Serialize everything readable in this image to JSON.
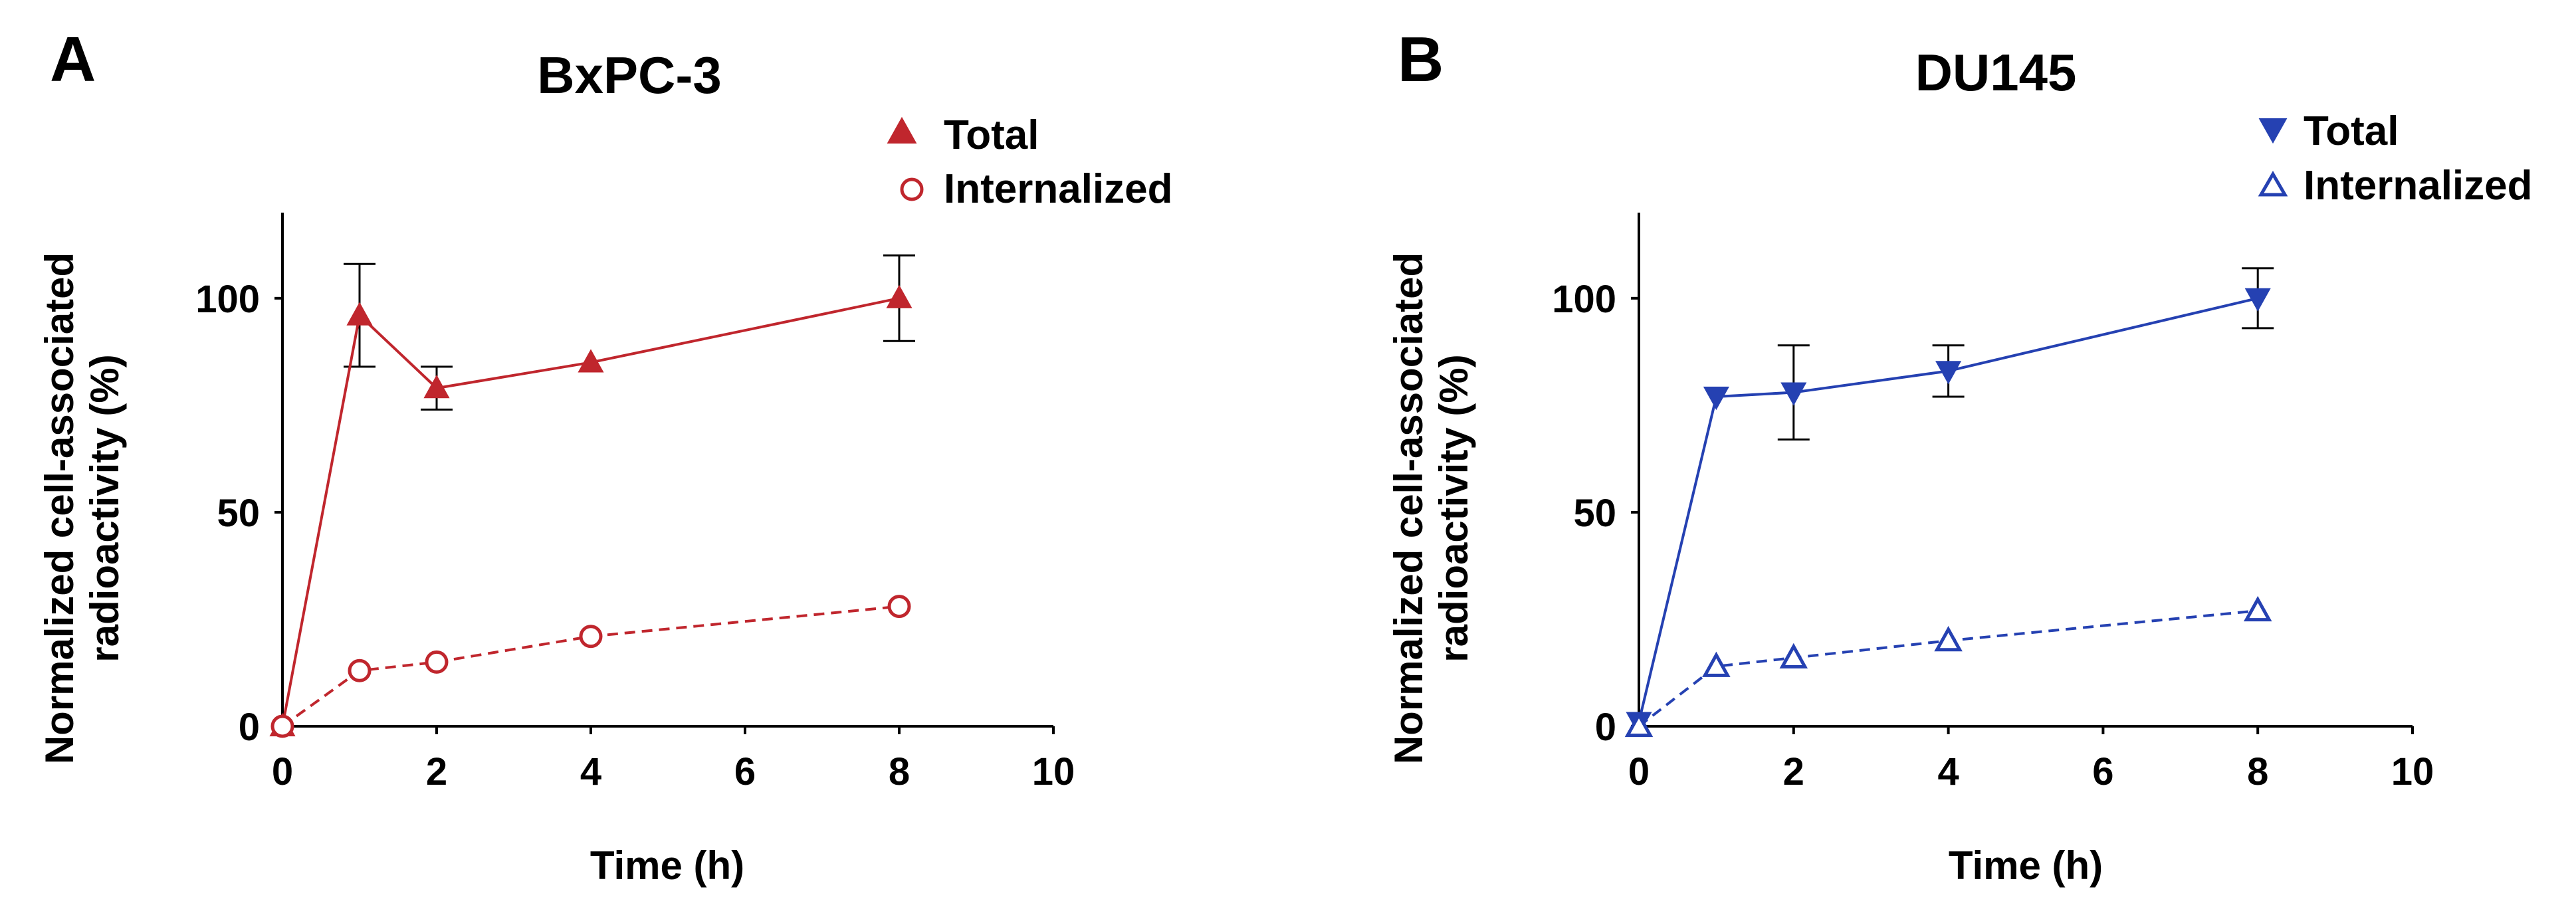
{
  "panels": [
    {
      "letter": "A",
      "title": "BxPC-3",
      "xlabel": "Time (h)",
      "ylabel_line1": "Normalized cell-associated",
      "ylabel_line2": "radioactivity (%)",
      "legend": {
        "total": "Total",
        "internalized": "Internalized"
      }
    },
    {
      "letter": "B",
      "title": "DU145",
      "xlabel": "Time (h)",
      "ylabel_line1": "Normalized cell-associated",
      "ylabel_line2": "radioactivity (%)",
      "legend": {
        "total": "Total",
        "internalized": "Internalized"
      }
    }
  ],
  "chart_data": [
    {
      "type": "line",
      "title": "BxPC-3",
      "xlabel": "Time (h)",
      "ylabel": "Normalized cell-associated radioactivity (%)",
      "xlim": [
        0,
        10
      ],
      "ylim": [
        0,
        120
      ],
      "xticks": [
        0,
        2,
        4,
        6,
        8,
        10
      ],
      "yticks": [
        0,
        50,
        100
      ],
      "xtick_labels": [
        "0",
        "2",
        "4",
        "6",
        "8",
        "10"
      ],
      "ytick_labels": [
        "0",
        "50",
        "100"
      ],
      "grid": false,
      "legend_position": "top-right",
      "color": "#c0262d",
      "series": [
        {
          "name": "Total",
          "marker": "triangle-up-filled",
          "line_style": "solid",
          "x": [
            0,
            1,
            2,
            4,
            8
          ],
          "values": [
            0,
            96,
            79,
            85,
            100
          ],
          "errors": [
            null,
            12,
            5,
            null,
            10
          ]
        },
        {
          "name": "Internalized",
          "marker": "circle-open",
          "line_style": "dashed",
          "x": [
            0,
            1,
            2,
            4,
            8
          ],
          "values": [
            0,
            13,
            15,
            21,
            28
          ],
          "errors": [
            null,
            null,
            null,
            null,
            null
          ]
        }
      ]
    },
    {
      "type": "line",
      "title": "DU145",
      "xlabel": "Time (h)",
      "ylabel": "Normalized cell-associated radioactivity (%)",
      "xlim": [
        0,
        10
      ],
      "ylim": [
        0,
        120
      ],
      "xticks": [
        0,
        2,
        4,
        6,
        8,
        10
      ],
      "yticks": [
        0,
        50,
        100
      ],
      "xtick_labels": [
        "0",
        "2",
        "4",
        "6",
        "8",
        "10"
      ],
      "ytick_labels": [
        "0",
        "50",
        "100"
      ],
      "grid": false,
      "legend_position": "top-right",
      "color": "#2541b2",
      "series": [
        {
          "name": "Total",
          "marker": "triangle-down-filled",
          "line_style": "solid",
          "x": [
            0,
            1,
            2,
            4,
            8
          ],
          "values": [
            1,
            77,
            78,
            83,
            100
          ],
          "errors": [
            null,
            null,
            11,
            6,
            7
          ]
        },
        {
          "name": "Internalized",
          "marker": "triangle-up-open",
          "line_style": "dashed",
          "x": [
            0,
            1,
            2,
            4,
            8
          ],
          "values": [
            0,
            14,
            16,
            20,
            27
          ],
          "errors": [
            null,
            null,
            null,
            null,
            null
          ]
        }
      ]
    }
  ]
}
